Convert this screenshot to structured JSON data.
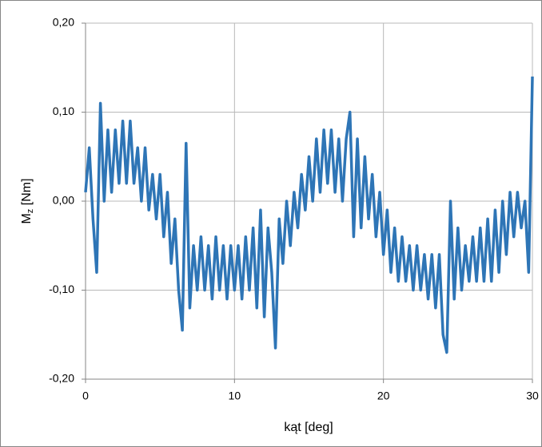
{
  "chart_data": {
    "type": "line",
    "x_label": "kąt [deg]",
    "y_label_main": "M",
    "y_label_sub": "z",
    "y_label_unit": " [Nm]",
    "xlim": [
      0,
      30
    ],
    "ylim": [
      -0.2,
      0.2
    ],
    "xticks": [
      0,
      10,
      20,
      30
    ],
    "yticks": [
      {
        "value": -0.2,
        "label": "-0,20"
      },
      {
        "value": -0.1,
        "label": "-0,10"
      },
      {
        "value": 0,
        "label": "0,00"
      },
      {
        "value": 0.1,
        "label": "0,10"
      },
      {
        "value": 0.2,
        "label": "0,20"
      }
    ],
    "grid": true,
    "color": "#2e75b6",
    "x": [
      0,
      0.25,
      0.5,
      0.75,
      1,
      1.25,
      1.5,
      1.75,
      2,
      2.25,
      2.5,
      2.75,
      3,
      3.25,
      3.5,
      3.75,
      4,
      4.25,
      4.5,
      4.75,
      5,
      5.25,
      5.5,
      5.75,
      6,
      6.25,
      6.5,
      6.75,
      7,
      7.25,
      7.5,
      7.75,
      8,
      8.25,
      8.5,
      8.75,
      9,
      9.25,
      9.5,
      9.75,
      10,
      10.25,
      10.5,
      10.75,
      11,
      11.25,
      11.5,
      11.75,
      12,
      12.25,
      12.5,
      12.75,
      13,
      13.25,
      13.5,
      13.75,
      14,
      14.25,
      14.5,
      14.75,
      15,
      15.25,
      15.5,
      15.75,
      16,
      16.25,
      16.5,
      16.75,
      17,
      17.25,
      17.5,
      17.75,
      18,
      18.25,
      18.5,
      18.75,
      19,
      19.25,
      19.5,
      19.75,
      20,
      20.25,
      20.5,
      20.75,
      21,
      21.25,
      21.5,
      21.75,
      22,
      22.25,
      22.5,
      22.75,
      23,
      23.25,
      23.5,
      23.75,
      24,
      24.25,
      24.5,
      24.75,
      25,
      25.25,
      25.5,
      25.75,
      26,
      26.25,
      26.5,
      26.75,
      27,
      27.25,
      27.5,
      27.75,
      28,
      28.25,
      28.5,
      28.75,
      29,
      29.25,
      29.5,
      29.75,
      30
    ],
    "values": [
      0.01,
      0.06,
      -0.02,
      -0.08,
      0.11,
      0,
      0.08,
      0.01,
      0.08,
      0.02,
      0.09,
      0.02,
      0.09,
      0.02,
      0.06,
      0,
      0.06,
      -0.01,
      0.03,
      -0.02,
      0.03,
      -0.04,
      0.01,
      -0.07,
      -0.02,
      -0.1,
      -0.145,
      0.065,
      -0.12,
      -0.05,
      -0.1,
      -0.04,
      -0.1,
      -0.05,
      -0.11,
      -0.04,
      -0.1,
      -0.05,
      -0.11,
      -0.05,
      -0.1,
      -0.05,
      -0.11,
      -0.04,
      -0.1,
      -0.03,
      -0.12,
      -0.01,
      -0.13,
      -0.03,
      -0.08,
      -0.165,
      -0.02,
      -0.07,
      0,
      -0.05,
      0.01,
      -0.03,
      0.03,
      -0.01,
      0.05,
      0,
      0.07,
      0.01,
      0.08,
      0.02,
      0.08,
      0.01,
      0.07,
      0,
      0.07,
      0.1,
      -0.04,
      0.07,
      -0.03,
      0.05,
      -0.02,
      0.03,
      -0.04,
      0.01,
      -0.06,
      -0.01,
      -0.08,
      -0.03,
      -0.09,
      -0.04,
      -0.09,
      -0.05,
      -0.1,
      -0.05,
      -0.1,
      -0.06,
      -0.11,
      -0.06,
      -0.12,
      -0.06,
      -0.15,
      -0.17,
      0,
      -0.11,
      -0.03,
      -0.1,
      -0.05,
      -0.09,
      -0.04,
      -0.09,
      -0.03,
      -0.09,
      -0.02,
      -0.09,
      -0.01,
      -0.08,
      0,
      -0.06,
      0.01,
      -0.04,
      0.01,
      -0.03,
      0,
      -0.08,
      0.14
    ]
  }
}
